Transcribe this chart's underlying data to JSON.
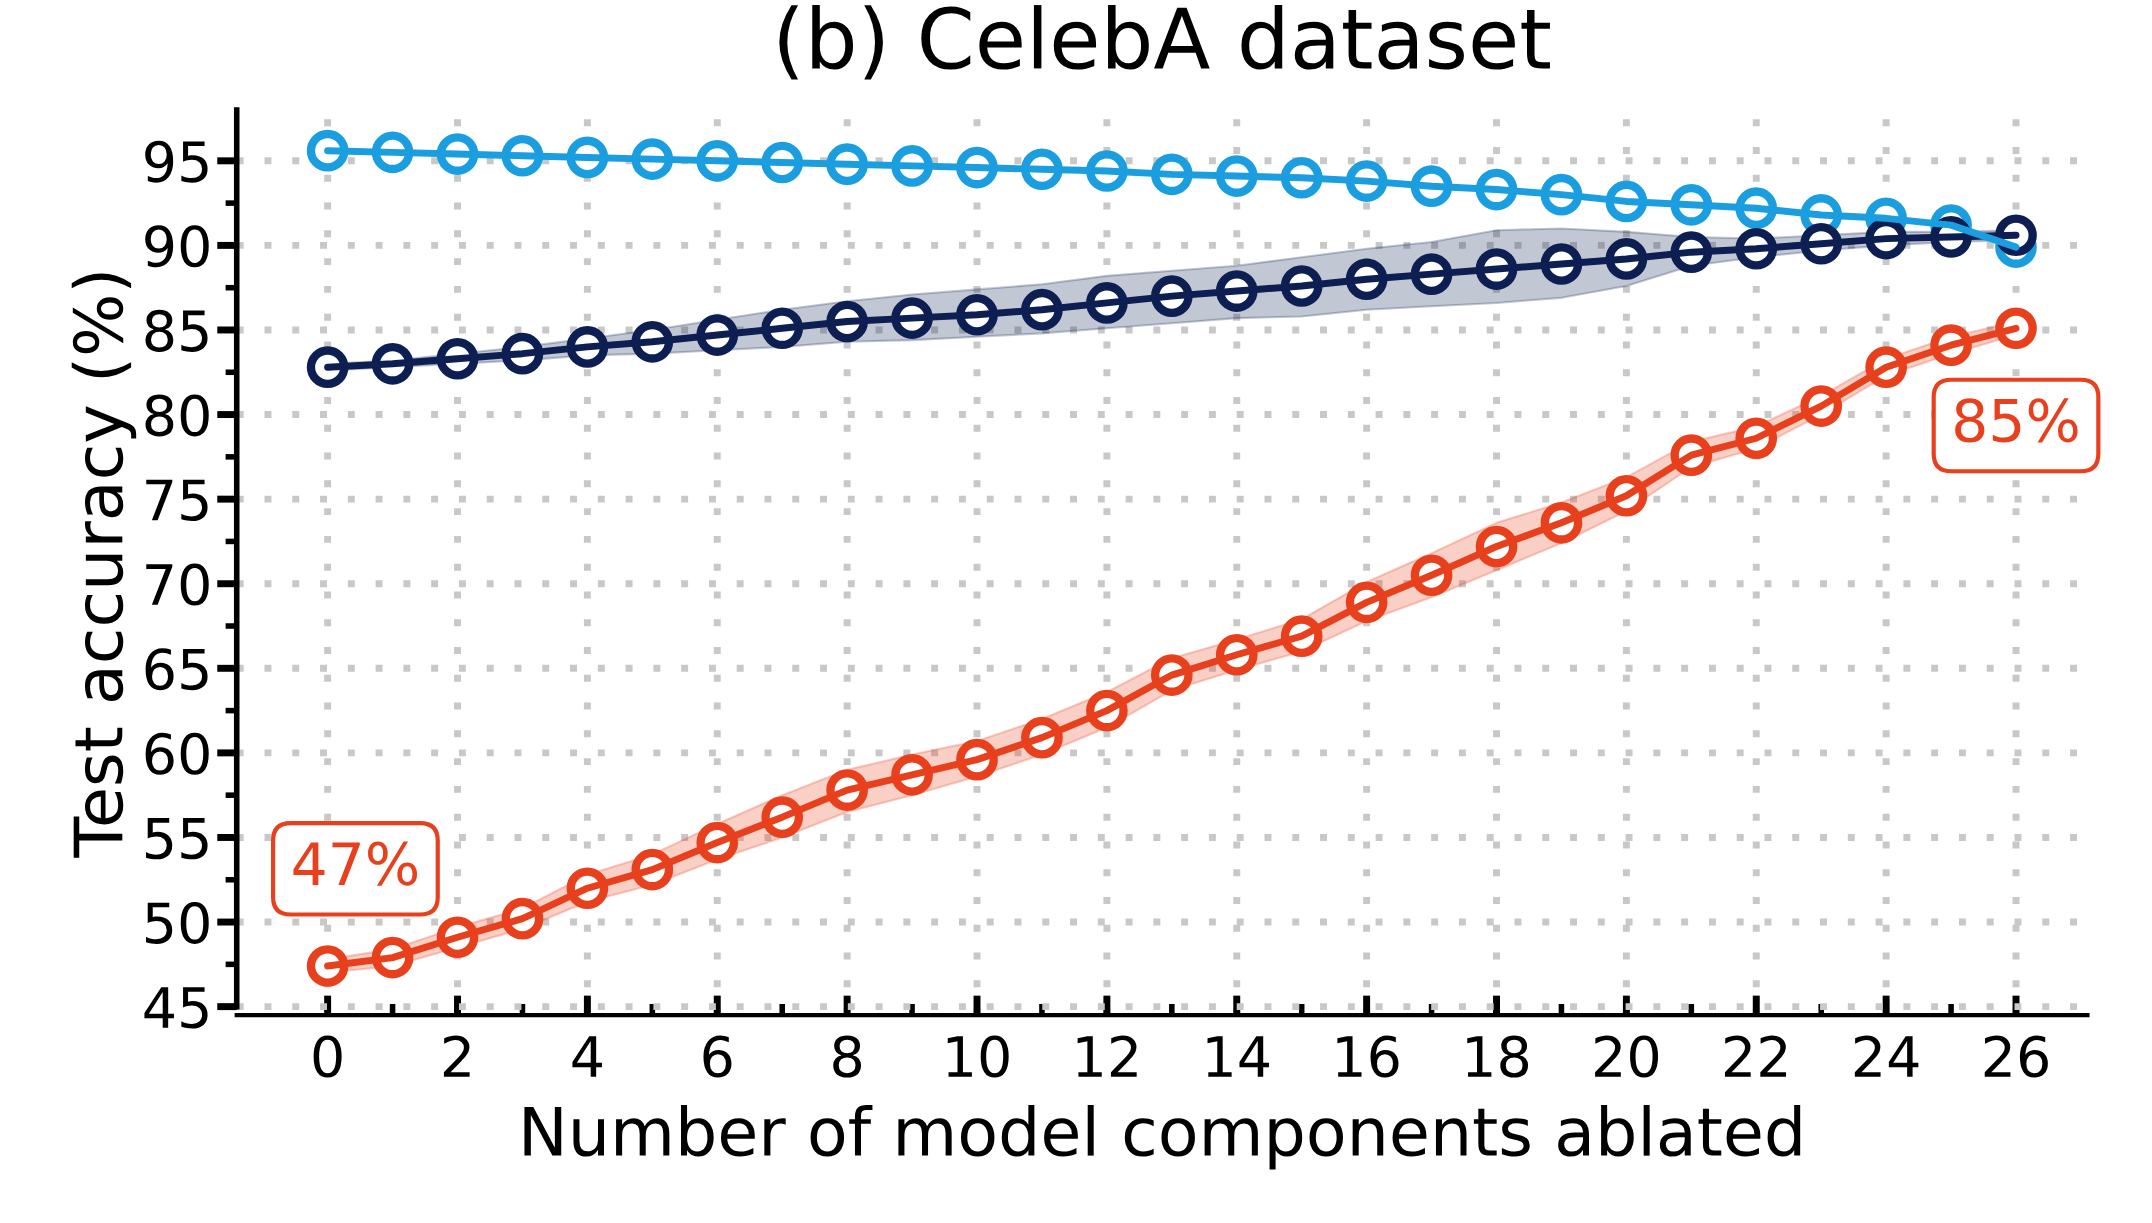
{
  "chart_data": {
    "type": "line",
    "title": "(b) CelebA dataset",
    "xlabel": "Number of model components ablated",
    "ylabel": "Test accuracy (%)",
    "x": [
      0,
      1,
      2,
      3,
      4,
      5,
      6,
      7,
      8,
      9,
      10,
      11,
      12,
      13,
      14,
      15,
      16,
      17,
      18,
      19,
      20,
      21,
      22,
      23,
      24,
      25,
      26
    ],
    "series": [
      {
        "color": "#1a9ee0",
        "values": [
          95.6,
          95.5,
          95.4,
          95.3,
          95.2,
          95.1,
          95.0,
          94.9,
          94.8,
          94.7,
          94.6,
          94.5,
          94.4,
          94.2,
          94.1,
          94.0,
          93.8,
          93.5,
          93.3,
          93.0,
          92.6,
          92.4,
          92.2,
          91.8,
          91.6,
          91.2,
          89.9
        ]
      },
      {
        "color": "#0d1f52",
        "values": [
          82.8,
          83.0,
          83.3,
          83.6,
          84.0,
          84.3,
          84.7,
          85.1,
          85.5,
          85.7,
          85.9,
          86.2,
          86.6,
          87.0,
          87.3,
          87.6,
          88.0,
          88.3,
          88.6,
          88.9,
          89.2,
          89.6,
          89.8,
          90.1,
          90.4,
          90.5,
          90.6
        ],
        "lower": [
          82.6,
          82.8,
          83.0,
          83.2,
          83.5,
          83.6,
          83.8,
          84.0,
          84.3,
          84.4,
          84.6,
          84.8,
          85.1,
          85.4,
          85.7,
          85.8,
          86.2,
          86.4,
          86.6,
          86.9,
          87.6,
          88.8,
          89.3,
          89.7,
          90.0,
          90.2,
          90.3
        ],
        "upper": [
          83.0,
          83.2,
          83.6,
          84.0,
          84.5,
          85.0,
          85.6,
          86.2,
          86.7,
          87.1,
          87.4,
          87.7,
          88.2,
          88.5,
          88.8,
          89.3,
          89.8,
          90.2,
          90.9,
          91.0,
          90.8,
          90.5,
          90.4,
          90.6,
          90.8,
          90.8,
          90.9
        ]
      },
      {
        "color": "#e8401c",
        "values": [
          47.4,
          47.9,
          49.1,
          50.2,
          52.0,
          53.1,
          54.7,
          56.2,
          57.8,
          58.7,
          59.6,
          60.9,
          62.5,
          64.6,
          65.8,
          66.9,
          68.9,
          70.5,
          72.2,
          73.6,
          75.2,
          77.6,
          78.6,
          80.5,
          82.8,
          84.1,
          85.1
        ],
        "lower": [
          47.0,
          47.4,
          48.5,
          49.6,
          51.2,
          52.2,
          53.7,
          55.0,
          56.5,
          57.5,
          58.6,
          59.9,
          61.5,
          63.7,
          64.9,
          66.0,
          67.8,
          69.2,
          70.8,
          72.4,
          74.3,
          76.9,
          78.0,
          80.0,
          82.3,
          83.6,
          84.7
        ],
        "upper": [
          47.8,
          48.4,
          49.7,
          50.8,
          52.8,
          54.0,
          55.8,
          57.5,
          59.0,
          59.9,
          60.7,
          62.0,
          63.6,
          65.6,
          66.7,
          67.9,
          70.1,
          71.8,
          73.6,
          74.8,
          76.3,
          78.4,
          79.3,
          81.1,
          83.3,
          84.6,
          85.5
        ]
      }
    ],
    "xlim": [
      -1.4,
      27.1
    ],
    "ylim": [
      44.5,
      98
    ],
    "xticks": [
      0,
      2,
      4,
      6,
      8,
      10,
      12,
      14,
      16,
      18,
      20,
      22,
      24,
      26
    ],
    "yticks": [
      45,
      50,
      55,
      60,
      65,
      70,
      75,
      80,
      85,
      90,
      95
    ],
    "grid": true,
    "marker": "circle",
    "line_style": "solid",
    "annotations": [
      {
        "text": "47%",
        "x": 0,
        "y": 47.4
      },
      {
        "text": "85%",
        "x": 26,
        "y": 85.1
      }
    ]
  }
}
